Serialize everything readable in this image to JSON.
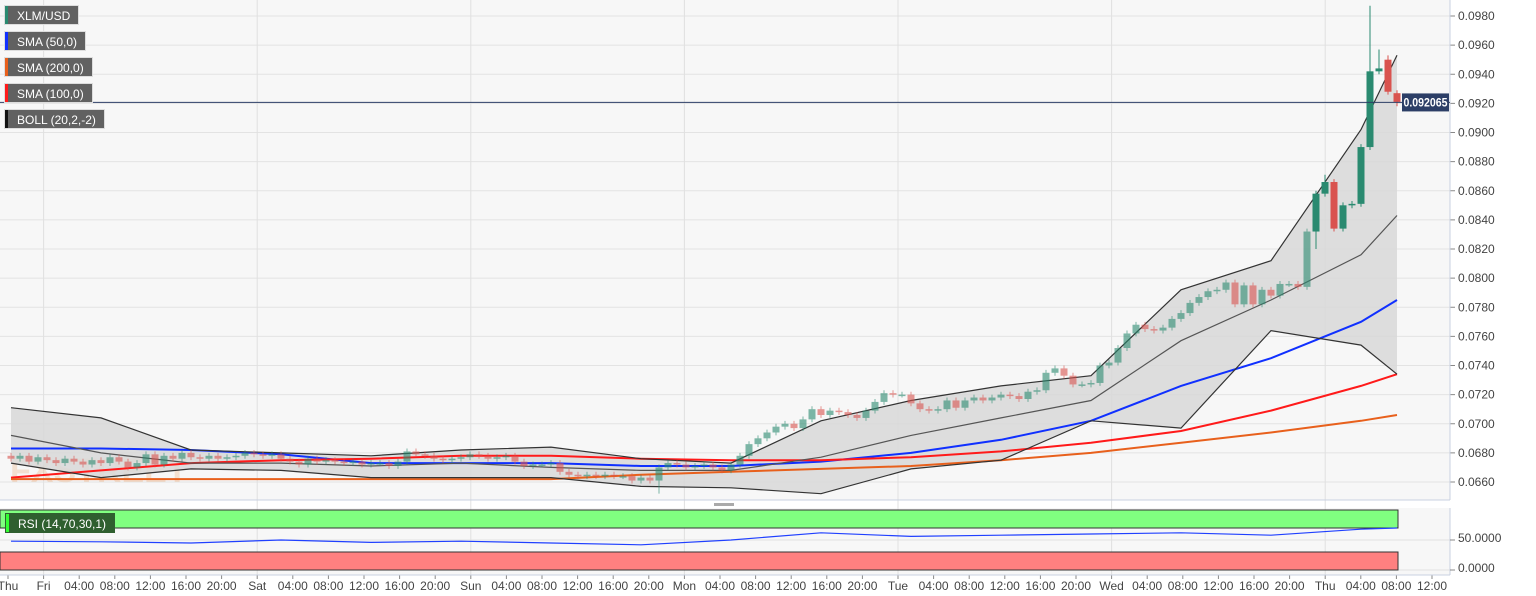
{
  "legend": [
    {
      "label": "XLM/USD",
      "color": "#2a8a70"
    },
    {
      "label": "SMA (50,0)",
      "color": "#1030ff"
    },
    {
      "label": "SMA (200,0)",
      "color": "#e8601c"
    },
    {
      "label": "SMA (100,0)",
      "color": "#ff1a1a"
    },
    {
      "label": "BOLL (20,2,-2)",
      "color": "#111111"
    }
  ],
  "rsi_label": "RSI (14,70,30,1)",
  "watermark": "FXSTREET",
  "current_price": 0.092065,
  "current_price_label": "0.092065",
  "colors": {
    "up": "#2a8a70",
    "down": "#d9534f",
    "price_tag": "#2c3e66",
    "rsi_line": "#2040ff",
    "rsi_over": "#80ff80",
    "rsi_under": "#ff8080"
  },
  "chart_data": {
    "type": "candlestick",
    "title": "XLM/USD",
    "interval": "1h",
    "ylim": [
      0.0649,
      0.0991
    ],
    "y_ticks": [
      "0.0660",
      "0.0680",
      "0.0700",
      "0.0720",
      "0.0740",
      "0.0760",
      "0.0780",
      "0.0800",
      "0.0820",
      "0.0840",
      "0.0860",
      "0.0880",
      "0.0900",
      "0.0920",
      "0.0940",
      "0.0960",
      "0.0980"
    ],
    "x_ticks": [
      "Thu",
      "Fri",
      "04:00",
      "08:00",
      "12:00",
      "16:00",
      "20:00",
      "Sat",
      "04:00",
      "08:00",
      "12:00",
      "16:00",
      "20:00",
      "Sun",
      "04:00",
      "08:00",
      "12:00",
      "16:00",
      "20:00",
      "Mon",
      "04:00",
      "08:00",
      "12:00",
      "16:00",
      "20:00",
      "Tue",
      "04:00",
      "08:00",
      "12:00",
      "16:00",
      "20:00",
      "Wed",
      "04:00",
      "08:00",
      "12:00",
      "16:00",
      "20:00",
      "Thu",
      "04:00",
      "08:00",
      "12:00"
    ],
    "close": [
      0.0676,
      0.0678,
      0.0674,
      0.0677,
      0.0675,
      0.0673,
      0.0676,
      0.0674,
      0.0672,
      0.0675,
      0.0673,
      0.0677,
      0.0674,
      0.067,
      0.0673,
      0.0679,
      0.0672,
      0.0678,
      0.0676,
      0.068,
      0.0677,
      0.0676,
      0.0678,
      0.0676,
      0.0677,
      0.0678,
      0.068,
      0.0679,
      0.0678,
      0.0679,
      0.0676,
      0.0674,
      0.0672,
      0.0676,
      0.0674,
      0.0675,
      0.0674,
      0.0673,
      0.0674,
      0.0672,
      0.0673,
      0.0673,
      0.0671,
      0.0674,
      0.0681,
      0.0679,
      0.0678,
      0.0676,
      0.0675,
      0.0676,
      0.0677,
      0.0679,
      0.0678,
      0.0676,
      0.0677,
      0.0678,
      0.0674,
      0.0671,
      0.0672,
      0.0672,
      0.0673,
      0.0667,
      0.0665,
      0.0664,
      0.0665,
      0.0664,
      0.0665,
      0.0664,
      0.0664,
      0.0661,
      0.0663,
      0.0661,
      0.067,
      0.0673,
      0.0672,
      0.067,
      0.0671,
      0.0672,
      0.067,
      0.0668,
      0.0672,
      0.0678,
      0.0686,
      0.069,
      0.0694,
      0.0698,
      0.07,
      0.0697,
      0.0703,
      0.071,
      0.0706,
      0.0709,
      0.0708,
      0.0706,
      0.0704,
      0.0709,
      0.0715,
      0.0721,
      0.072,
      0.072,
      0.0714,
      0.071,
      0.0709,
      0.071,
      0.0716,
      0.0711,
      0.0716,
      0.0718,
      0.0716,
      0.0718,
      0.072,
      0.0719,
      0.0717,
      0.0722,
      0.0723,
      0.0735,
      0.0738,
      0.0733,
      0.0727,
      0.0727,
      0.0728,
      0.074,
      0.0742,
      0.0752,
      0.0762,
      0.0768,
      0.0765,
      0.0764,
      0.0766,
      0.0772,
      0.0776,
      0.0783,
      0.0787,
      0.0791,
      0.0792,
      0.0797,
      0.0782,
      0.0795,
      0.0782,
      0.0792,
      0.0788,
      0.0796,
      0.0796,
      0.0794,
      0.0832,
      0.0858,
      0.0866,
      0.0834,
      0.085,
      0.0851,
      0.089,
      0.0942,
      0.0944,
      0.0928,
      0.0921
    ],
    "overrides": {
      "72": {
        "l": 0.0652
      },
      "151": {
        "h": 0.0987
      },
      "152": {
        "h": 0.0957
      },
      "153": {
        "o": 0.095,
        "h": 0.0953
      },
      "154": {
        "o": 0.0927,
        "l": 0.0918
      },
      "146": {
        "h": 0.0871
      },
      "145": {
        "l": 0.082
      }
    },
    "indicator_sample_index": [
      0,
      10,
      20,
      30,
      40,
      50,
      60,
      70,
      80,
      90,
      100,
      110,
      120,
      130,
      140,
      150,
      154
    ],
    "series": [
      {
        "name": "SMA (50,0)",
        "color": "#1030ff",
        "values": [
          0.0683,
          0.0683,
          0.0682,
          0.0679,
          0.0673,
          0.0673,
          0.0673,
          0.0671,
          0.0671,
          0.0674,
          0.068,
          0.0689,
          0.0702,
          0.0726,
          0.0745,
          0.077,
          0.0785
        ]
      },
      {
        "name": "SMA (100,0)",
        "color": "#ff1a1a",
        "values": [
          0.0663,
          0.0668,
          0.0673,
          0.0675,
          0.0676,
          0.0678,
          0.0678,
          0.0676,
          0.0675,
          0.0675,
          0.0677,
          0.0681,
          0.0687,
          0.0695,
          0.0709,
          0.0726,
          0.0734
        ]
      },
      {
        "name": "SMA (200,0)",
        "color": "#e8601c",
        "values": [
          0.0662,
          0.0662,
          0.0662,
          0.0662,
          0.0662,
          0.0662,
          0.0662,
          0.0665,
          0.0667,
          0.0669,
          0.0671,
          0.0675,
          0.068,
          0.0687,
          0.0694,
          0.0702,
          0.0706
        ]
      },
      {
        "name": "BOLL upper",
        "color": "#333333",
        "values": [
          0.0711,
          0.0704,
          0.0682,
          0.068,
          0.0678,
          0.0682,
          0.0684,
          0.0676,
          0.0673,
          0.0702,
          0.0716,
          0.0726,
          0.0733,
          0.0792,
          0.0812,
          0.0902,
          0.0953
        ]
      },
      {
        "name": "BOLL middle",
        "color": "#555555",
        "values": [
          0.0692,
          0.068,
          0.0673,
          0.0673,
          0.0671,
          0.0673,
          0.067,
          0.0668,
          0.0668,
          0.0677,
          0.0692,
          0.0704,
          0.0716,
          0.0757,
          0.0785,
          0.0816,
          0.0843
        ]
      },
      {
        "name": "BOLL lower",
        "color": "#333333",
        "values": [
          0.0673,
          0.0663,
          0.0669,
          0.0668,
          0.0663,
          0.0663,
          0.0663,
          0.0657,
          0.0656,
          0.0652,
          0.0669,
          0.0675,
          0.0702,
          0.0697,
          0.0764,
          0.0754,
          0.0734
        ]
      }
    ],
    "rsi": {
      "ylim": [
        0,
        100
      ],
      "y_ticks": [
        "50.0000",
        "0.0000"
      ],
      "overbought": 70,
      "oversold": 30,
      "values": [
        48,
        47,
        45,
        50,
        46,
        48,
        45,
        42,
        50,
        62,
        56,
        58,
        60,
        62,
        58,
        68,
        70
      ]
    }
  }
}
